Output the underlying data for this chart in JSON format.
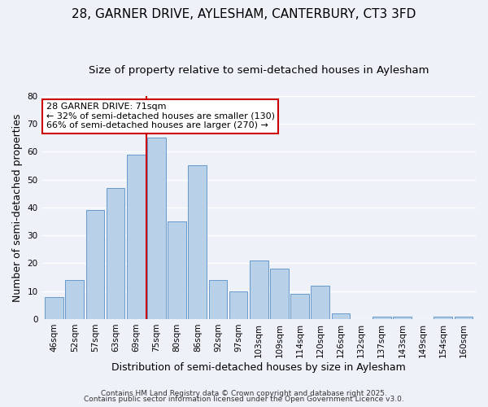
{
  "title": "28, GARNER DRIVE, AYLESHAM, CANTERBURY, CT3 3FD",
  "subtitle": "Size of property relative to semi-detached houses in Aylesham",
  "xlabel": "Distribution of semi-detached houses by size in Aylesham",
  "ylabel": "Number of semi-detached properties",
  "footnote1": "Contains HM Land Registry data © Crown copyright and database right 2025.",
  "footnote2": "Contains public sector information licensed under the Open Government Licence v3.0.",
  "bar_labels": [
    "46sqm",
    "52sqm",
    "57sqm",
    "63sqm",
    "69sqm",
    "75sqm",
    "80sqm",
    "86sqm",
    "92sqm",
    "97sqm",
    "103sqm",
    "109sqm",
    "114sqm",
    "120sqm",
    "126sqm",
    "132sqm",
    "137sqm",
    "143sqm",
    "149sqm",
    "154sqm",
    "160sqm"
  ],
  "bar_values": [
    8,
    14,
    39,
    47,
    59,
    65,
    35,
    55,
    14,
    10,
    21,
    18,
    9,
    12,
    2,
    0,
    1,
    1,
    0,
    1,
    1
  ],
  "bar_color": "#b8d0e8",
  "bar_edge_color": "#6699cc",
  "vline_color": "#cc0000",
  "vline_x": 4.5,
  "annotation_text": "28 GARNER DRIVE: 71sqm\n← 32% of semi-detached houses are smaller (130)\n66% of semi-detached houses are larger (270) →",
  "annotation_box_color": "#ffffff",
  "annotation_box_edge_color": "#cc0000",
  "ylim": [
    0,
    80
  ],
  "yticks": [
    0,
    10,
    20,
    30,
    40,
    50,
    60,
    70,
    80
  ],
  "background_color": "#eef2f8",
  "grid_color": "#ffffff",
  "title_fontsize": 11,
  "subtitle_fontsize": 9.5,
  "axis_label_fontsize": 9,
  "tick_fontsize": 7.5,
  "annotation_fontsize": 8,
  "footnote_fontsize": 6.5
}
